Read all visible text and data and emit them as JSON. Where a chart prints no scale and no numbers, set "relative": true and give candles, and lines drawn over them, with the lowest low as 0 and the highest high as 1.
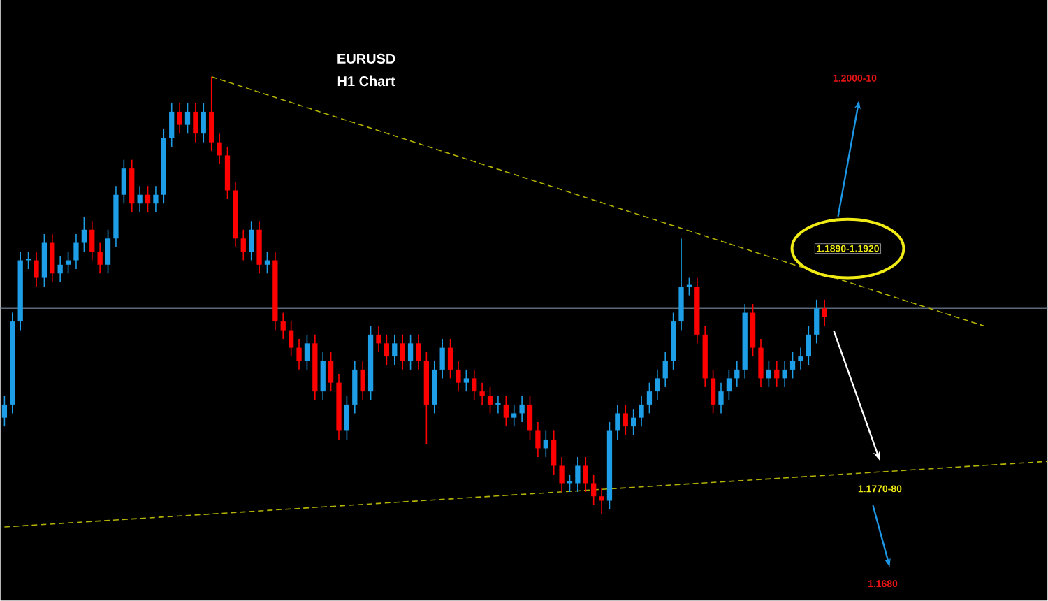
{
  "chart_data": {
    "type": "candlestick",
    "title": "EURUSD",
    "subtitle": "H1 Chart",
    "relative": true,
    "annotations": [
      "1.2000-10",
      "1.1890-1.1920",
      "1.1770-80",
      "1.1680"
    ],
    "categories": [
      null,
      null,
      null,
      null,
      null,
      null,
      null,
      null,
      null,
      null,
      null,
      null,
      null,
      null,
      null,
      null,
      null,
      null,
      null,
      null,
      null,
      null,
      null,
      null,
      null,
      null,
      null,
      null,
      null,
      null,
      null,
      null,
      null,
      null,
      null,
      null,
      null,
      null,
      null,
      null,
      null,
      null,
      null,
      null,
      null,
      null,
      null,
      null,
      null,
      null,
      null,
      null,
      null,
      null,
      null,
      null,
      null,
      null,
      null,
      null,
      null,
      null,
      null,
      null,
      null,
      null,
      null,
      null,
      null,
      null,
      null,
      null,
      null,
      null,
      null,
      null,
      null,
      null,
      null,
      null,
      null,
      null,
      null,
      null,
      null,
      null,
      null,
      null,
      null,
      null,
      null,
      null,
      null,
      null,
      null,
      null,
      null,
      null,
      null,
      null,
      null,
      null,
      null,
      null,
      null,
      null,
      null,
      null,
      null,
      null,
      null,
      null,
      null,
      null,
      null,
      null,
      null,
      null,
      null,
      null,
      null,
      null,
      null,
      null,
      null,
      null,
      null,
      null,
      null,
      null,
      null,
      null
    ],
    "ohlc": [
      [
        0.22,
        0.27,
        0.2,
        0.25
      ],
      [
        0.25,
        0.46,
        0.23,
        0.44
      ],
      [
        0.44,
        0.6,
        0.42,
        0.58
      ],
      [
        0.58,
        0.6,
        0.56,
        0.58
      ],
      [
        0.58,
        0.6,
        0.52,
        0.54
      ],
      [
        0.54,
        0.64,
        0.52,
        0.62
      ],
      [
        0.62,
        0.64,
        0.53,
        0.55
      ],
      [
        0.55,
        0.59,
        0.53,
        0.57
      ],
      [
        0.57,
        0.6,
        0.55,
        0.58
      ],
      [
        0.58,
        0.64,
        0.56,
        0.62
      ],
      [
        0.62,
        0.68,
        0.6,
        0.65
      ],
      [
        0.65,
        0.67,
        0.58,
        0.6
      ],
      [
        0.6,
        0.62,
        0.55,
        0.57
      ],
      [
        0.57,
        0.65,
        0.55,
        0.63
      ],
      [
        0.63,
        0.75,
        0.61,
        0.73
      ],
      [
        0.73,
        0.81,
        0.71,
        0.79
      ],
      [
        0.79,
        0.81,
        0.69,
        0.71
      ],
      [
        0.71,
        0.75,
        0.69,
        0.73
      ],
      [
        0.73,
        0.75,
        0.69,
        0.71
      ],
      [
        0.71,
        0.75,
        0.69,
        0.73
      ],
      [
        0.73,
        0.88,
        0.71,
        0.86
      ],
      [
        0.86,
        0.94,
        0.84,
        0.92
      ],
      [
        0.92,
        0.94,
        0.87,
        0.89
      ],
      [
        0.89,
        0.94,
        0.87,
        0.92
      ],
      [
        0.92,
        0.94,
        0.85,
        0.87
      ],
      [
        0.87,
        0.94,
        0.85,
        0.92
      ],
      [
        0.92,
        1.0,
        0.83,
        0.85
      ],
      [
        0.85,
        0.87,
        0.8,
        0.82
      ],
      [
        0.82,
        0.84,
        0.72,
        0.74
      ],
      [
        0.74,
        0.76,
        0.61,
        0.63
      ],
      [
        0.63,
        0.65,
        0.58,
        0.6
      ],
      [
        0.6,
        0.67,
        0.58,
        0.65
      ],
      [
        0.65,
        0.67,
        0.55,
        0.57
      ],
      [
        0.57,
        0.6,
        0.55,
        0.58
      ],
      [
        0.58,
        0.6,
        0.42,
        0.44
      ],
      [
        0.44,
        0.46,
        0.4,
        0.42
      ],
      [
        0.42,
        0.44,
        0.36,
        0.38
      ],
      [
        0.38,
        0.4,
        0.33,
        0.35
      ],
      [
        0.35,
        0.41,
        0.33,
        0.39
      ],
      [
        0.39,
        0.41,
        0.26,
        0.28
      ],
      [
        0.28,
        0.37,
        0.26,
        0.35
      ],
      [
        0.35,
        0.37,
        0.28,
        0.3
      ],
      [
        0.3,
        0.32,
        0.17,
        0.19
      ],
      [
        0.19,
        0.27,
        0.17,
        0.25
      ],
      [
        0.25,
        0.35,
        0.23,
        0.33
      ],
      [
        0.33,
        0.35,
        0.26,
        0.28
      ],
      [
        0.28,
        0.43,
        0.26,
        0.41
      ],
      [
        0.41,
        0.43,
        0.37,
        0.39
      ],
      [
        0.39,
        0.41,
        0.34,
        0.36
      ],
      [
        0.36,
        0.41,
        0.34,
        0.39
      ],
      [
        0.39,
        0.41,
        0.33,
        0.35
      ],
      [
        0.35,
        0.41,
        0.33,
        0.39
      ],
      [
        0.39,
        0.41,
        0.33,
        0.35
      ],
      [
        0.35,
        0.37,
        0.16,
        0.25
      ],
      [
        0.25,
        0.35,
        0.23,
        0.33
      ],
      [
        0.33,
        0.4,
        0.31,
        0.38
      ],
      [
        0.38,
        0.4,
        0.31,
        0.33
      ],
      [
        0.33,
        0.35,
        0.28,
        0.3
      ],
      [
        0.3,
        0.33,
        0.28,
        0.31
      ],
      [
        0.31,
        0.33,
        0.26,
        0.28
      ],
      [
        0.28,
        0.3,
        0.25,
        0.27
      ],
      [
        0.27,
        0.29,
        0.23,
        0.25
      ],
      [
        0.25,
        0.27,
        0.23,
        0.25
      ],
      [
        0.25,
        0.27,
        0.2,
        0.22
      ],
      [
        0.22,
        0.25,
        0.2,
        0.23
      ],
      [
        0.23,
        0.27,
        0.21,
        0.25
      ],
      [
        0.25,
        0.27,
        0.17,
        0.19
      ],
      [
        0.19,
        0.21,
        0.13,
        0.15
      ],
      [
        0.15,
        0.19,
        0.13,
        0.17
      ],
      [
        0.17,
        0.19,
        0.09,
        0.11
      ],
      [
        0.11,
        0.13,
        0.05,
        0.07
      ],
      [
        0.07,
        0.09,
        0.05,
        0.07
      ],
      [
        0.07,
        0.13,
        0.05,
        0.11
      ],
      [
        0.11,
        0.13,
        0.05,
        0.07
      ],
      [
        0.07,
        0.09,
        0.02,
        0.04
      ],
      [
        0.04,
        0.06,
        0.0,
        0.03
      ],
      [
        0.03,
        0.21,
        0.01,
        0.19
      ],
      [
        0.19,
        0.25,
        0.17,
        0.23
      ],
      [
        0.23,
        0.25,
        0.18,
        0.2
      ],
      [
        0.2,
        0.24,
        0.18,
        0.22
      ],
      [
        0.22,
        0.27,
        0.2,
        0.25
      ],
      [
        0.25,
        0.3,
        0.23,
        0.28
      ],
      [
        0.28,
        0.33,
        0.26,
        0.31
      ],
      [
        0.31,
        0.37,
        0.29,
        0.35
      ],
      [
        0.35,
        0.46,
        0.33,
        0.44
      ],
      [
        0.44,
        0.63,
        0.42,
        0.52
      ],
      [
        0.52,
        0.54,
        0.5,
        0.52
      ],
      [
        0.52,
        0.54,
        0.39,
        0.41
      ],
      [
        0.41,
        0.43,
        0.29,
        0.31
      ],
      [
        0.31,
        0.33,
        0.23,
        0.25
      ],
      [
        0.25,
        0.3,
        0.23,
        0.28
      ],
      [
        0.28,
        0.33,
        0.26,
        0.31
      ],
      [
        0.31,
        0.35,
        0.29,
        0.33
      ],
      [
        0.33,
        0.48,
        0.31,
        0.46
      ],
      [
        0.46,
        0.48,
        0.36,
        0.38
      ],
      [
        0.38,
        0.4,
        0.29,
        0.31
      ],
      [
        0.31,
        0.35,
        0.29,
        0.33
      ],
      [
        0.33,
        0.35,
        0.29,
        0.31
      ],
      [
        0.31,
        0.35,
        0.29,
        0.33
      ],
      [
        0.33,
        0.37,
        0.31,
        0.35
      ],
      [
        0.35,
        0.38,
        0.33,
        0.36
      ],
      [
        0.36,
        0.43,
        0.34,
        0.41
      ],
      [
        0.41,
        0.49,
        0.39,
        0.47
      ],
      [
        0.47,
        0.49,
        0.43,
        0.45
      ],
      null,
      null,
      null,
      null,
      null,
      null,
      null,
      null,
      null,
      null,
      null,
      null,
      null,
      null,
      null,
      null,
      null,
      null,
      null,
      null,
      null,
      null,
      null,
      null,
      null,
      null,
      null,
      null
    ],
    "series": [
      {
        "type": "line",
        "color": "#b3b300",
        "line_style": "dashed",
        "values": [
          null,
          null,
          null,
          null,
          null,
          null,
          null,
          null,
          null,
          null,
          null,
          null,
          null,
          null,
          null,
          null,
          null,
          null,
          null,
          null,
          null,
          null,
          null,
          null,
          null,
          null,
          1.0,
          null,
          null,
          null,
          null,
          null,
          null,
          null,
          null,
          null,
          null,
          null,
          null,
          null,
          null,
          null,
          null,
          null,
          null,
          null,
          null,
          null,
          null,
          null,
          null,
          null,
          null,
          null,
          null,
          null,
          null,
          null,
          null,
          null,
          null,
          null,
          null,
          null,
          null,
          null,
          null,
          null,
          null,
          null,
          null,
          null,
          null,
          null,
          null,
          null,
          null,
          null,
          null,
          null,
          null,
          null,
          null,
          null,
          null,
          null,
          null,
          null,
          null,
          null,
          null,
          null,
          null,
          null,
          null,
          null,
          null,
          null,
          null,
          null,
          null,
          null,
          null,
          null,
          null,
          null,
          null,
          null,
          null,
          null,
          null,
          null,
          null,
          null,
          null,
          null,
          null,
          null,
          null,
          null,
          null,
          null,
          null,
          0.43,
          null,
          null,
          null,
          null,
          null,
          null,
          null,
          null
        ]
      },
      {
        "type": "line",
        "color": "#b3b300",
        "line_style": "dashed",
        "values": [
          -0.03,
          null,
          null,
          null,
          null,
          null,
          null,
          null,
          null,
          null,
          null,
          null,
          null,
          null,
          null,
          null,
          null,
          null,
          null,
          null,
          null,
          null,
          null,
          null,
          null,
          null,
          null,
          null,
          null,
          null,
          null,
          null,
          null,
          null,
          null,
          null,
          null,
          null,
          null,
          null,
          null,
          null,
          null,
          null,
          null,
          null,
          null,
          null,
          null,
          null,
          null,
          null,
          null,
          null,
          null,
          null,
          null,
          null,
          null,
          null,
          null,
          null,
          null,
          null,
          null,
          null,
          null,
          null,
          null,
          null,
          null,
          null,
          null,
          null,
          null,
          null,
          null,
          null,
          null,
          null,
          null,
          null,
          null,
          null,
          null,
          null,
          null,
          null,
          null,
          null,
          null,
          null,
          null,
          null,
          null,
          null,
          null,
          null,
          null,
          null,
          null,
          null,
          null,
          null,
          null,
          null,
          null,
          null,
          null,
          null,
          null,
          null,
          null,
          null,
          null,
          null,
          null,
          null,
          null,
          null,
          null,
          null,
          null,
          null,
          null,
          null,
          null,
          null,
          null,
          null,
          null,
          0.12
        ]
      }
    ],
    "ref_lines": [
      {
        "axis": "y",
        "value": 0.47,
        "color": "#5a6878"
      }
    ]
  }
}
